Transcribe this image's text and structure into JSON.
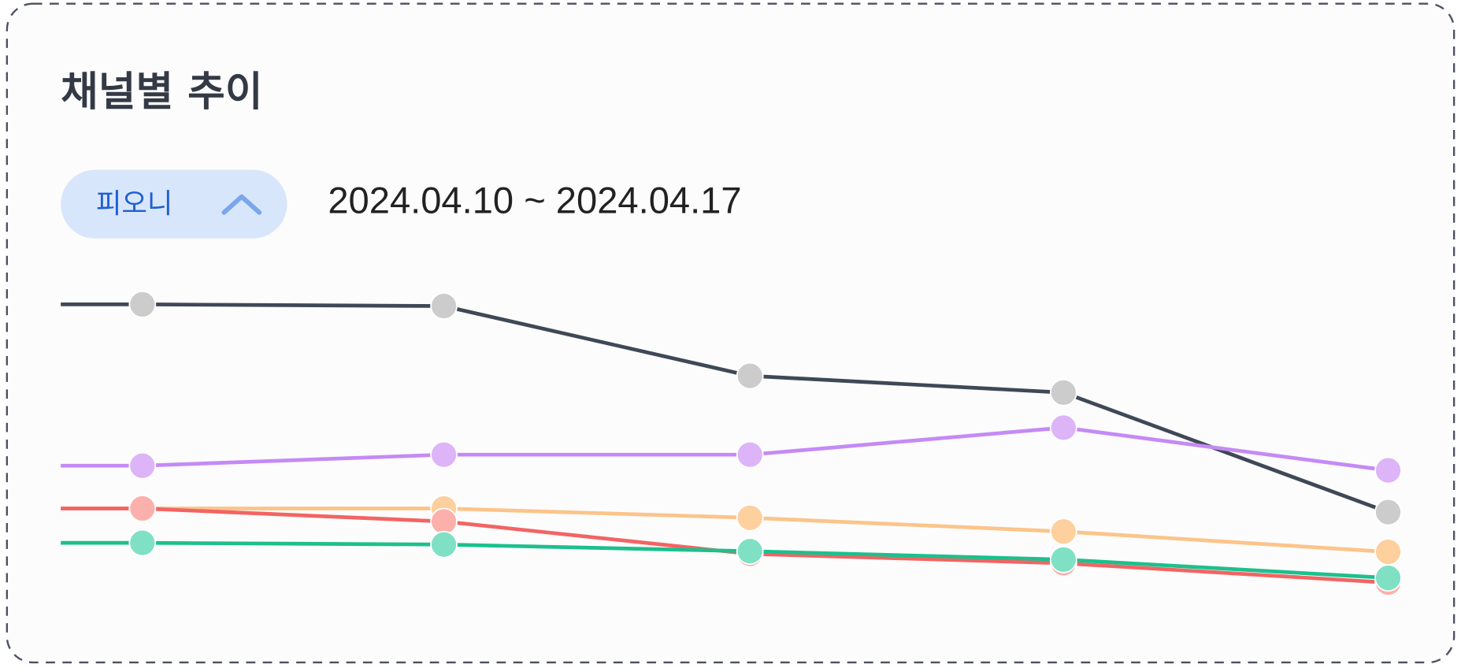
{
  "header": {
    "title": "채널별 추이"
  },
  "filter": {
    "channel": "피오니",
    "date_range": "2024.04.10 ~ 2024.04.17"
  },
  "chart_data": {
    "type": "line",
    "categories": [
      null,
      null,
      null,
      null,
      null
    ],
    "ylim": [
      0,
      100
    ],
    "series": [
      {
        "color": "#3f4856",
        "marker_color": "#cccccc",
        "values": [
          92.2,
          91.7,
          70.8,
          65.8,
          30.0
        ]
      },
      {
        "color": "#c58af5",
        "marker_color": "#dcb4f7",
        "values": [
          43.9,
          47.2,
          47.2,
          55.3,
          42.5
        ]
      },
      {
        "color": "#fcc48a",
        "marker_color": "#fdd09e",
        "values": [
          31.1,
          31.1,
          28.3,
          24.2,
          18.1
        ]
      },
      {
        "color": "#f26464",
        "marker_color": "#fbb0ac",
        "values": [
          31.1,
          27.2,
          17.5,
          14.7,
          8.9
        ]
      },
      {
        "color": "#1cc08c",
        "marker_color": "#7fe0c4",
        "values": [
          20.8,
          20.3,
          18.3,
          15.8,
          10.3
        ]
      }
    ]
  }
}
